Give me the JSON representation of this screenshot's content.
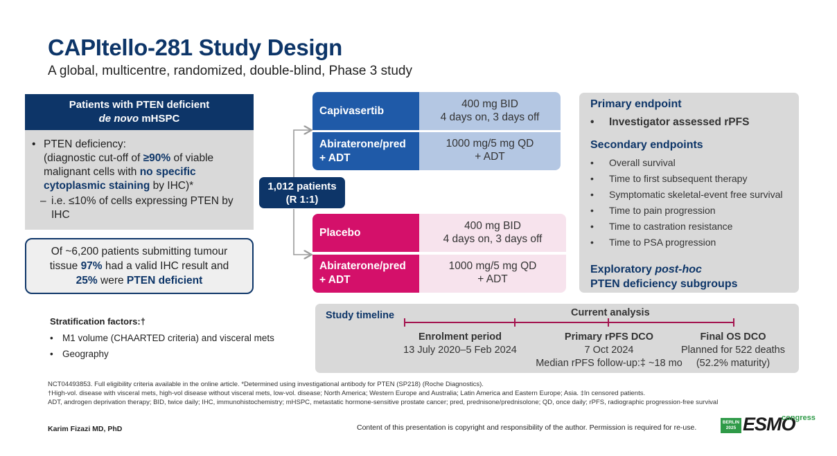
{
  "header": {
    "title": "CAPItello-281 Study Design",
    "subtitle": "A global, multicentre, randomized, double-blind, Phase 3 study"
  },
  "patients": {
    "heading_line1": "Patients with PTEN deficient",
    "heading_line2_italic": "de novo",
    "heading_line2_rest": " mHSPC",
    "bullet": "•",
    "crit_1": "PTEN deficiency:",
    "crit_2": "(diagnostic cut-off of ",
    "crit_3": "≥90%",
    "crit_4": " of viable malignant cells with ",
    "crit_5": "no specific cytoplasmic staining",
    "crit_6": " by IHC)*",
    "dash": "–",
    "sub_crit": "i.e. ≤10% of cells expressing PTEN by IHC"
  },
  "result": {
    "line1": "Of ~6,200 patients submitting tumour",
    "line2_a": "tissue ",
    "line2_b": "97%",
    "line2_c": " had a valid IHC result and",
    "line3_a": "25%",
    "line3_b": " were ",
    "line3_c": "PTEN deficient"
  },
  "stratification": {
    "title": "Stratification factors:†",
    "bullet": "•",
    "items": [
      "M1 volume (CHAARTED criteria) and visceral mets",
      "Geography"
    ]
  },
  "randomization": {
    "line1": "1,012 patients",
    "line2": "(R 1:1)"
  },
  "arms": {
    "capivasertib": {
      "label": "Capivasertib",
      "dose_line1": "400 mg BID",
      "dose_line2": "4 days on, 3 days off"
    },
    "abiraterone_1": {
      "label_line1": "Abiraterone/pred",
      "label_line2": "+ ADT",
      "dose_line1": "1000 mg/5 mg QD",
      "dose_line2": "+ ADT"
    },
    "placebo": {
      "label": "Placebo",
      "dose_line1": "400 mg BID",
      "dose_line2": "4 days on, 3 days off"
    },
    "abiraterone_2": {
      "label_line1": "Abiraterone/pred",
      "label_line2": "+ ADT",
      "dose_line1": "1000 mg/5 mg QD",
      "dose_line2": "+ ADT"
    },
    "colors": {
      "capi_dark": "#1f5aa8",
      "capi_light": "#b4c7e3",
      "placebo_dark": "#d4106a",
      "placebo_light": "#f7e3ed"
    }
  },
  "endpoints": {
    "primary_heading": "Primary endpoint",
    "bullet": "•",
    "primary_item": "Investigator assessed rPFS",
    "secondary_heading": "Secondary endpoints",
    "secondary_items": [
      "Overall survival",
      "Time to first subsequent therapy",
      "Symptomatic skeletal-event free survival",
      "Time to pain progression",
      "Time to castration resistance",
      "Time to PSA progression"
    ],
    "exploratory_line1_a": "Exploratory ",
    "exploratory_line1_b": "post-hoc",
    "exploratory_line2": "PTEN deficiency subgroups"
  },
  "timeline": {
    "title": "Study timeline",
    "current": "Current analysis",
    "enrolment_title": "Enrolment period",
    "enrolment_dates": "13 July 2020–5 Feb 2024",
    "primary_title": "Primary rPFS DCO",
    "primary_date": "7 Oct 2024",
    "primary_followup": "Median rPFS follow-up:‡ ~18 mo",
    "final_title": "Final OS DCO",
    "final_line1": "Planned for 522 deaths",
    "final_line2": "(52.2% maturity)",
    "line_color": "#a3134e"
  },
  "footnotes": {
    "line1": "NCT04493853. Full eligibility criteria available in the online article. *Determined using investigational antibody for PTEN (SP218) (Roche Diagnostics).",
    "line2": "†High-vol. disease with visceral mets, high-vol disease without visceral mets, low-vol. disease; North America; Western Europe and Australia; Latin America and Eastern Europe; Asia. ‡In censored patients.",
    "line3": "ADT, androgen deprivation therapy; BID, twice daily; IHC, immunohistochemistry; mHSPC, metastatic hormone-sensitive prostate cancer; pred, prednisone/prednisolone; QD, once daily; rPFS, radiographic progression-free survival"
  },
  "footer": {
    "author": "Karim Fizazi MD, PhD",
    "copyright": "Content of this presentation is copyright and responsibility of the author. Permission is required for re-use.",
    "logo_badge_line1": "BERLIN",
    "logo_badge_line2": "2025",
    "logo_word": "ESMO",
    "logo_congress": "congress"
  }
}
